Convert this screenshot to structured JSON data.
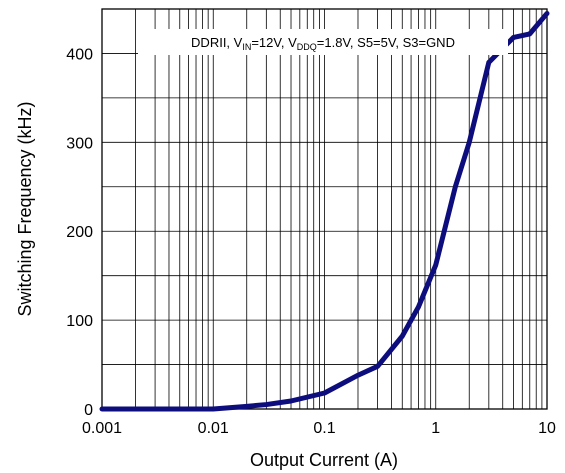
{
  "chart_data": {
    "type": "line",
    "xlabel": "Output Current (A)",
    "ylabel": "Switching Frequency (kHz)",
    "xscale": "log",
    "xlim": [
      0.001,
      10
    ],
    "ylim": [
      0,
      450
    ],
    "xticks": [
      0.001,
      0.01,
      0.1,
      1,
      10
    ],
    "xtick_labels": [
      "0.001",
      "0.01",
      "0.1",
      "1",
      "10"
    ],
    "yticks": [
      0,
      100,
      200,
      300,
      400
    ],
    "ytick_labels": [
      "0",
      "100",
      "200",
      "300",
      "400"
    ],
    "grid": true,
    "annotation": {
      "prefix": "DDRII, V",
      "vin_sub": "IN",
      "vin_val": "=12V, V",
      "vddq_sub": "DDQ",
      "rest": "=1.8V, S5=5V, S3=GND"
    },
    "series": [
      {
        "color": "#0d0d7d",
        "x": [
          0.001,
          0.002,
          0.005,
          0.01,
          0.02,
          0.03,
          0.05,
          0.1,
          0.2,
          0.3,
          0.5,
          0.7,
          1,
          1.5,
          2,
          3,
          5,
          7,
          10
        ],
        "y": [
          0,
          0,
          0,
          0,
          3,
          5,
          9,
          18,
          38,
          48,
          82,
          115,
          162,
          250,
          300,
          390,
          418,
          422,
          445
        ]
      }
    ]
  }
}
